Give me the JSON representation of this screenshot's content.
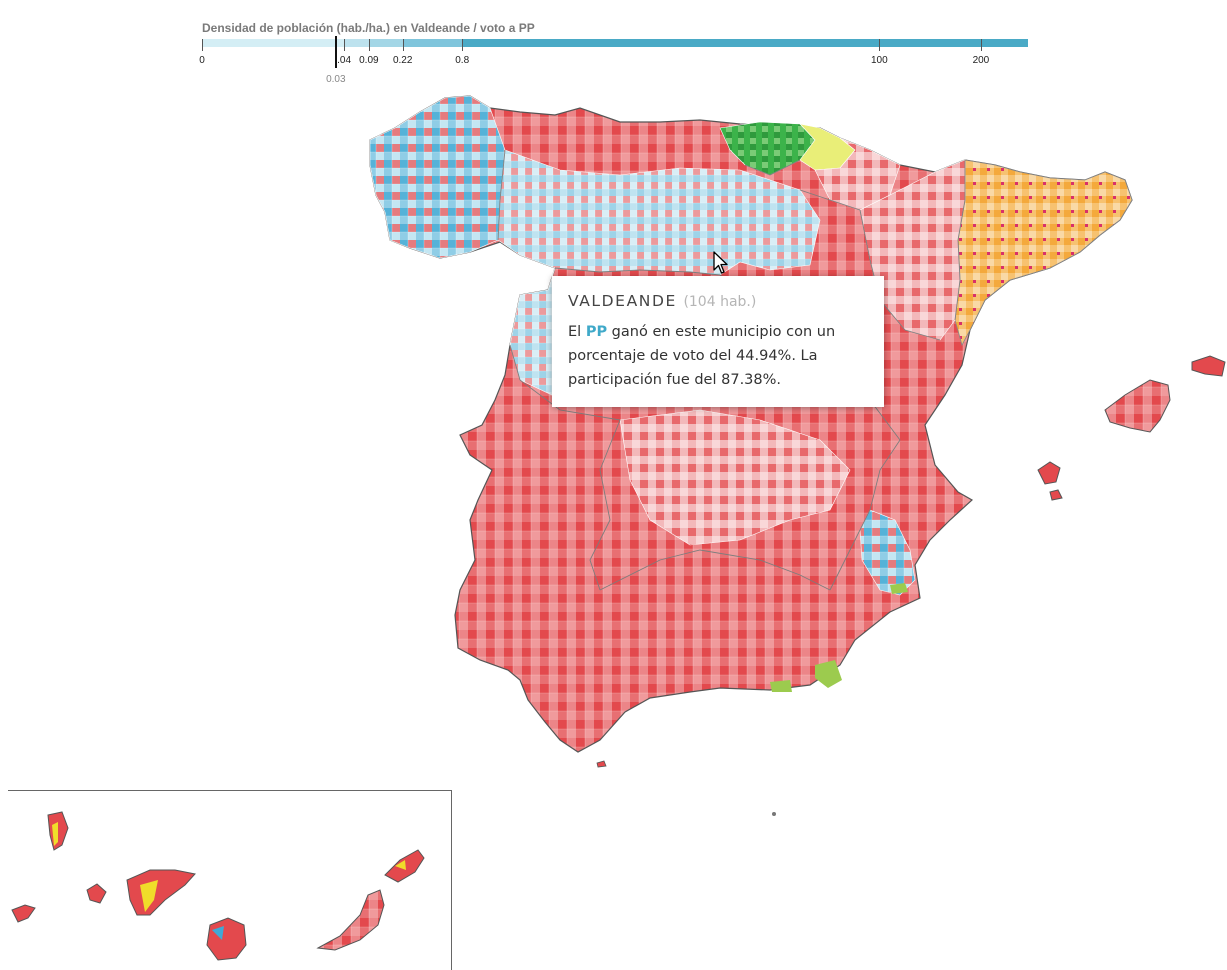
{
  "legend": {
    "title": "Densidad de población (hab./ha.) en Valdeande / voto a PP",
    "ticks": [
      {
        "value": "0",
        "frac": 0.0
      },
      {
        "value": ".04",
        "frac": 0.172
      },
      {
        "value": "0.09",
        "frac": 0.202
      },
      {
        "value": "0.22",
        "frac": 0.243
      },
      {
        "value": "0.8",
        "frac": 0.315
      },
      {
        "value": "100",
        "frac": 0.82
      },
      {
        "value": "200",
        "frac": 0.943
      }
    ],
    "segments": [
      {
        "from": 0.0,
        "to": 0.172,
        "color": "#d4eef5"
      },
      {
        "from": 0.172,
        "to": 0.202,
        "color": "#bde2ee"
      },
      {
        "from": 0.202,
        "to": 0.243,
        "color": "#a3d6e6"
      },
      {
        "from": 0.243,
        "to": 0.315,
        "color": "#7fc5dc"
      },
      {
        "from": 0.315,
        "to": 1.0,
        "color": "#4aaac6"
      }
    ],
    "marker_value": "0.03",
    "marker_frac": 0.162
  },
  "tooltip": {
    "municipality": "VALDEANDE",
    "population": "(104 hab.)",
    "text_before": "El ",
    "party": "PP",
    "text_after": " ganó en este municipio con un porcentaje de voto del 44.94%. La participación fue del 87.38%."
  },
  "map": {
    "party_colors": {
      "PP": "#3fa9d6",
      "PSOE": "#e24a4e",
      "PNV": "#3cb34a",
      "Bildu": "#e8ec6a",
      "ERC": "#f6a93b",
      "JxCat": "#f4c44b",
      "CC": "#f0dd2a",
      "Cs": "#f08a36",
      "Podemos": "#7a4f9a",
      "Others": "#9ccb4e"
    },
    "regions": [
      "Península",
      "Baleares",
      "Canarias",
      "Ceuta",
      "Melilla"
    ]
  },
  "cursor": "arrow-pointer-icon"
}
